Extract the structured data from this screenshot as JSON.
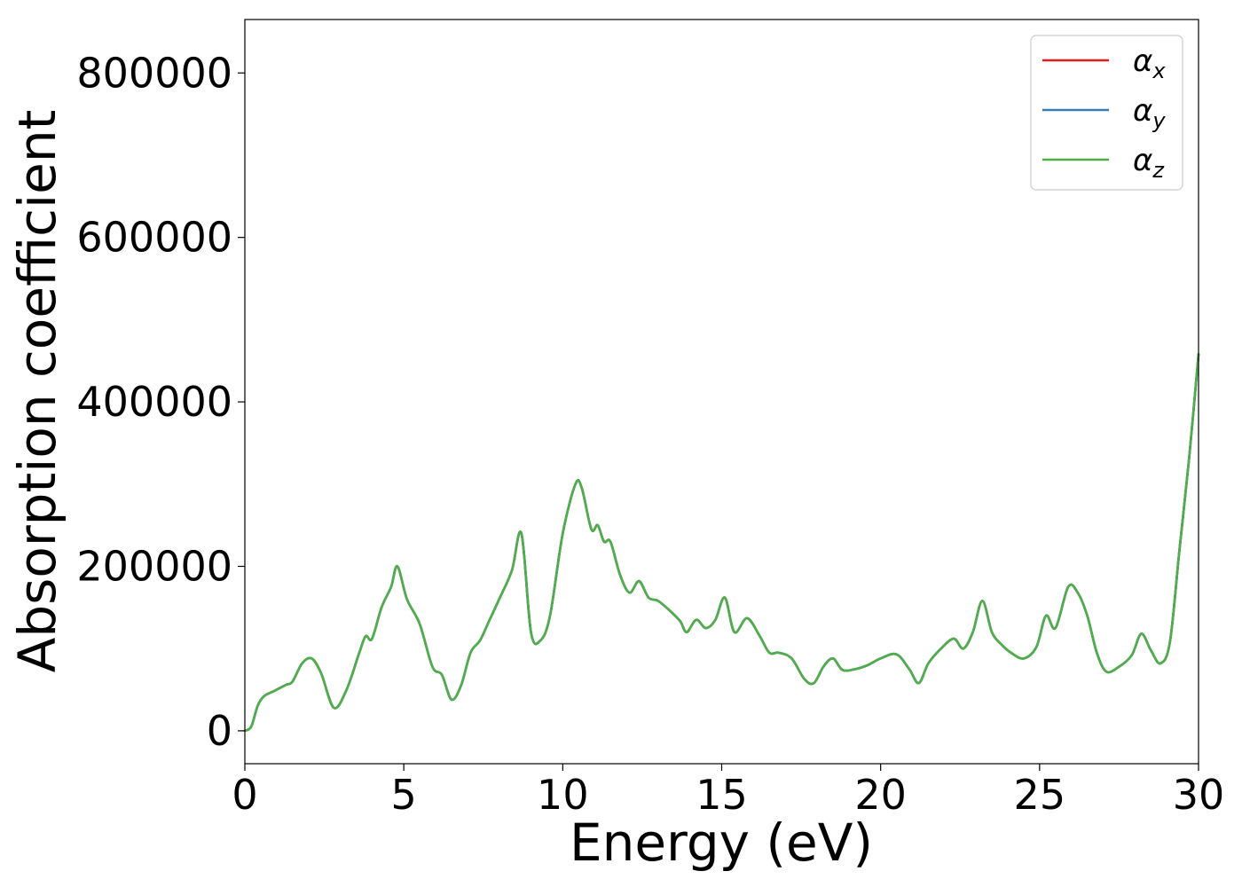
{
  "chart_data": {
    "type": "line",
    "xlabel": "Energy (eV)",
    "ylabel": "Absorption coefficient",
    "xlim": [
      0,
      30
    ],
    "ylim": [
      -40000,
      865000
    ],
    "xticks": [
      0,
      5,
      10,
      15,
      20,
      25,
      30
    ],
    "yticks": [
      0,
      200000,
      400000,
      600000,
      800000
    ],
    "grid": false,
    "legend_position": "top-right",
    "series": [
      {
        "name": "α",
        "subscript": "x",
        "color": "#e41a1c"
      },
      {
        "name": "α",
        "subscript": "y",
        "color": "#377eb8"
      },
      {
        "name": "α",
        "subscript": "z",
        "color": "#4daf4a"
      }
    ],
    "x": [
      0,
      0.2,
      0.4,
      0.6,
      0.9,
      1.1,
      1.3,
      1.5,
      1.8,
      2.1,
      2.4,
      2.8,
      3.2,
      3.6,
      3.8,
      4.0,
      4.3,
      4.6,
      4.8,
      5.1,
      5.5,
      5.9,
      6.2,
      6.5,
      6.8,
      7.1,
      7.4,
      7.7,
      8.0,
      8.4,
      8.7,
      9.0,
      9.3,
      9.6,
      10.0,
      10.4,
      10.6,
      10.9,
      11.1,
      11.3,
      11.5,
      11.8,
      12.1,
      12.4,
      12.7,
      13.0,
      13.4,
      13.7,
      13.9,
      14.2,
      14.5,
      14.8,
      15.1,
      15.4,
      15.8,
      16.2,
      16.5,
      16.8,
      17.2,
      17.6,
      17.9,
      18.2,
      18.5,
      18.8,
      19.2,
      19.6,
      20.0,
      20.5,
      20.9,
      21.2,
      21.5,
      21.9,
      22.3,
      22.6,
      22.9,
      23.2,
      23.5,
      23.8,
      24.1,
      24.5,
      24.9,
      25.2,
      25.5,
      25.9,
      26.2,
      26.5,
      26.8,
      27.1,
      27.5,
      27.9,
      28.2,
      28.5,
      28.8,
      29.1,
      29.4,
      29.7,
      30.0
    ],
    "values": [
      0,
      5000,
      30000,
      42000,
      48000,
      52000,
      56000,
      60000,
      82000,
      88000,
      70000,
      28000,
      50000,
      95000,
      115000,
      112000,
      150000,
      175000,
      200000,
      160000,
      130000,
      78000,
      68000,
      38000,
      55000,
      95000,
      110000,
      135000,
      160000,
      195000,
      240000,
      120000,
      110000,
      140000,
      240000,
      300000,
      295000,
      245000,
      250000,
      230000,
      230000,
      190000,
      168000,
      182000,
      162000,
      158000,
      145000,
      133000,
      120000,
      135000,
      125000,
      135000,
      162000,
      120000,
      137000,
      115000,
      95000,
      95000,
      88000,
      63000,
      58000,
      78000,
      88000,
      74000,
      75000,
      80000,
      88000,
      93000,
      75000,
      58000,
      82000,
      100000,
      112000,
      100000,
      120000,
      158000,
      120000,
      105000,
      95000,
      88000,
      102000,
      140000,
      125000,
      175000,
      168000,
      140000,
      95000,
      72000,
      78000,
      92000,
      118000,
      98000,
      82000,
      108000,
      220000,
      330000,
      458000
    ]
  }
}
